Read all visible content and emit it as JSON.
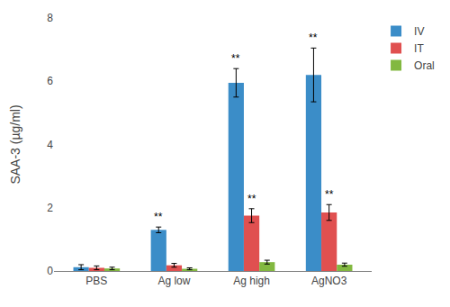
{
  "chart_data": {
    "type": "bar",
    "ylabel": "SAA-3 (µg/ml)",
    "categories": [
      "PBS",
      "Ag low",
      "Ag high",
      "AgNO3"
    ],
    "series": [
      {
        "name": "IV",
        "color": "#3B8DC8",
        "values": [
          0.12,
          1.3,
          5.95,
          6.2
        ],
        "errors": [
          0.08,
          0.09,
          0.45,
          0.85
        ]
      },
      {
        "name": "IT",
        "color": "#E05050",
        "values": [
          0.1,
          0.18,
          1.75,
          1.85
        ],
        "errors": [
          0.06,
          0.06,
          0.22,
          0.25
        ]
      },
      {
        "name": "Oral",
        "color": "#82B840",
        "values": [
          0.08,
          0.07,
          0.28,
          0.2
        ],
        "errors": [
          0.04,
          0.03,
          0.06,
          0.05
        ]
      }
    ],
    "annotations": [
      {
        "series": "IV",
        "category": "Ag low",
        "text": "**"
      },
      {
        "series": "IV",
        "category": "Ag high",
        "text": "**"
      },
      {
        "series": "IV",
        "category": "AgNO3",
        "text": "**"
      },
      {
        "series": "IT",
        "category": "Ag high",
        "text": "**"
      },
      {
        "series": "IT",
        "category": "AgNO3",
        "text": "**"
      }
    ],
    "ylim": [
      0,
      8
    ],
    "yticks": [
      0,
      2,
      4,
      6,
      8
    ],
    "grid": false,
    "legend": "upper right"
  }
}
